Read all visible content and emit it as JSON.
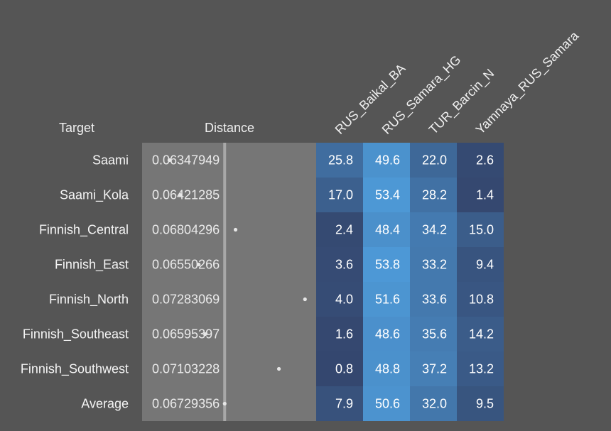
{
  "chart_data": {
    "type": "table",
    "headers": {
      "target": "Target",
      "distance": "Distance"
    },
    "columns": [
      "RUS_Baikal_BA",
      "RUS_Samara_HG",
      "TUR_Barcin_N",
      "Yamnaya_RUS_Samara"
    ],
    "rows": [
      {
        "target": "Saami",
        "distance": "0.06347949",
        "values": [
          25.8,
          49.6,
          22.0,
          2.6
        ]
      },
      {
        "target": "Saami_Kola",
        "distance": "0.06421285",
        "values": [
          17.0,
          53.4,
          28.2,
          1.4
        ]
      },
      {
        "target": "Finnish_Central",
        "distance": "0.06804296",
        "values": [
          2.4,
          48.4,
          34.2,
          15.0
        ]
      },
      {
        "target": "Finnish_East",
        "distance": "0.06550266",
        "values": [
          3.6,
          53.8,
          33.2,
          9.4
        ]
      },
      {
        "target": "Finnish_North",
        "distance": "0.07283069",
        "values": [
          4.0,
          51.6,
          33.6,
          10.8
        ]
      },
      {
        "target": "Finnish_Southeast",
        "distance": "0.06595397",
        "values": [
          1.6,
          48.6,
          35.6,
          14.2
        ]
      },
      {
        "target": "Finnish_Southwest",
        "distance": "0.07103228",
        "values": [
          0.8,
          48.8,
          37.2,
          13.2
        ]
      },
      {
        "target": "Average",
        "distance": "0.06729356",
        "values": [
          7.9,
          50.6,
          32.0,
          9.5
        ]
      }
    ],
    "distance_scale": [
      0.0616,
      0.0736
    ],
    "colors": {
      "background": "#555555",
      "distance_panel": "#767676",
      "average_line": "#a8a8a8",
      "dot": "#e6e6e6",
      "heat_low": "#34466d",
      "heat_high": "#4e9ad8"
    }
  }
}
